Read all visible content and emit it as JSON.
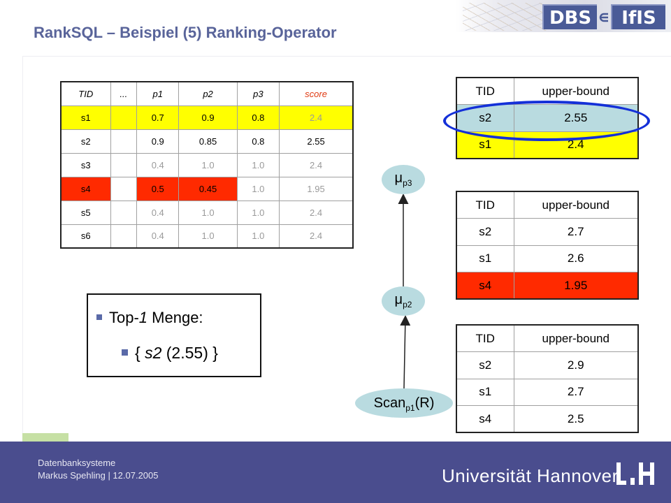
{
  "header": {
    "title": "RankSQL – Beispiel (5) Ranking-Operator",
    "logo_left": "DBS",
    "logo_right": "IfIS"
  },
  "main_table": {
    "columns": [
      "TID",
      "...",
      "p1",
      "p2",
      "p3",
      "score"
    ],
    "rows": [
      {
        "tid": "s1",
        "dots": "",
        "p1": "0.7",
        "p2": "0.9",
        "p3": "0.8",
        "score": "2.4"
      },
      {
        "tid": "s2",
        "dots": "",
        "p1": "0.9",
        "p2": "0.85",
        "p3": "0.8",
        "score": "2.55"
      },
      {
        "tid": "s3",
        "dots": "",
        "p1": "0.4",
        "p2": "1.0",
        "p3": "1.0",
        "score": "2.4"
      },
      {
        "tid": "s4",
        "dots": "",
        "p1": "0.5",
        "p2": "0.45",
        "p3": "1.0",
        "score": "1.95"
      },
      {
        "tid": "s5",
        "dots": "",
        "p1": "0.4",
        "p2": "1.0",
        "p3": "1.0",
        "score": "2.4"
      },
      {
        "tid": "s6",
        "dots": "",
        "p1": "0.4",
        "p2": "1.0",
        "p3": "1.0",
        "score": "2.4"
      }
    ]
  },
  "queue_tables": [
    {
      "headers": [
        "TID",
        "upper-bound"
      ],
      "rows": [
        [
          "s2",
          "2.55"
        ],
        [
          "s1",
          "2.4"
        ]
      ]
    },
    {
      "headers": [
        "TID",
        "upper-bound"
      ],
      "rows": [
        [
          "s2",
          "2.7"
        ],
        [
          "s1",
          "2.6"
        ],
        [
          "s4",
          "1.95"
        ]
      ]
    },
    {
      "headers": [
        "TID",
        "upper-bound"
      ],
      "rows": [
        [
          "s2",
          "2.9"
        ],
        [
          "s1",
          "2.7"
        ],
        [
          "s4",
          "2.5"
        ]
      ]
    }
  ],
  "operators": {
    "mu_symbol": "μ",
    "mu3_sub": "p3",
    "mu2_sub": "p2",
    "scan_label": "Scan",
    "scan_sub": "p1",
    "scan_arg": "(R)"
  },
  "result_box": {
    "line1_pre": "Top-",
    "line1_k": "1",
    "line1_post": " Menge:",
    "line2_pre": "{ ",
    "line2_tid": "s2",
    "line2_post": " (2.55) }"
  },
  "footer": {
    "course": "Datenbanksysteme",
    "author_date": "Markus Spehling | 12.07.2005",
    "university": "Universität Hannover"
  },
  "colors": {
    "title": "#59649a",
    "footer_bg": "#4a4d8e",
    "yellow": "#ffff00",
    "red": "#ff2a00",
    "teal": "#b9dbe0",
    "ellipse": "#1430d8"
  }
}
